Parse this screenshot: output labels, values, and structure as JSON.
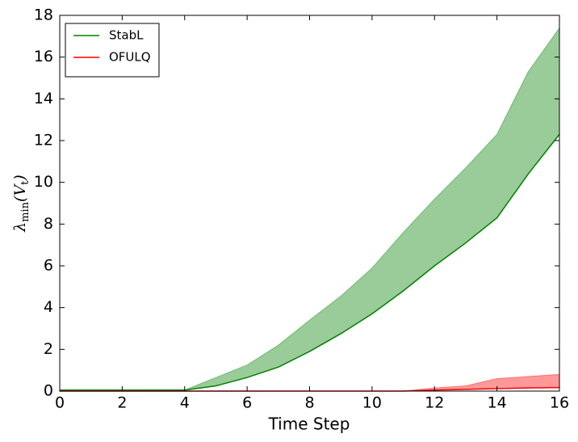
{
  "chart_data": {
    "type": "line",
    "xlabel": "Time Step",
    "ylabel": [
      "λ",
      "min",
      "(V",
      "t",
      ")"
    ],
    "x": [
      0,
      1,
      2,
      3,
      4,
      5,
      6,
      7,
      8,
      9,
      10,
      11,
      12,
      13,
      14,
      15,
      16
    ],
    "series": [
      {
        "name": "StabL",
        "color": "#008000",
        "fill": "#008000",
        "values": [
          0.05,
          0.05,
          0.05,
          0.05,
          0.05,
          0.25,
          0.65,
          1.15,
          1.9,
          2.75,
          3.7,
          4.8,
          6.0,
          7.1,
          8.3,
          10.4,
          12.3
        ],
        "upper": [
          0.05,
          0.05,
          0.05,
          0.05,
          0.05,
          0.65,
          1.25,
          2.2,
          3.4,
          4.55,
          5.9,
          7.6,
          9.2,
          10.7,
          12.3,
          15.3,
          17.4
        ]
      },
      {
        "name": "OFULQ",
        "color": "#ff0000",
        "fill": "#ff0000",
        "values": [
          0,
          0,
          0,
          0,
          0,
          0,
          0,
          0,
          0,
          0,
          0,
          0,
          0.05,
          0.08,
          0.12,
          0.15,
          0.17
        ],
        "upper": [
          0,
          0,
          0,
          0,
          0,
          0,
          0,
          0,
          0,
          0,
          0,
          0,
          0.15,
          0.25,
          0.6,
          0.7,
          0.8
        ]
      }
    ],
    "xlim": [
      0,
      16
    ],
    "xticks": [
      0,
      2,
      4,
      6,
      8,
      10,
      12,
      14,
      16
    ],
    "ylim": [
      0,
      18
    ],
    "yticks": [
      0,
      2,
      4,
      6,
      8,
      10,
      12,
      14,
      16,
      18
    ],
    "legend": "upper-left"
  }
}
